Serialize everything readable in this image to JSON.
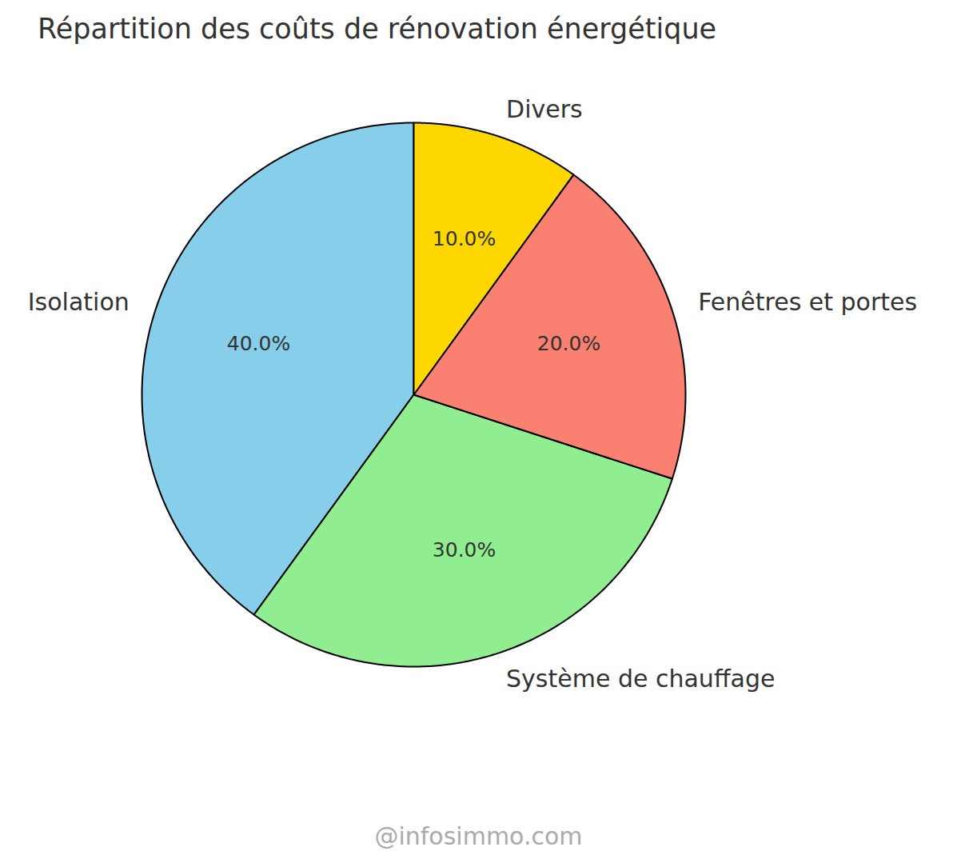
{
  "chart_data": {
    "type": "pie",
    "title": "Répartition des coûts de rénovation énergétique",
    "categories": [
      "Isolation",
      "Système de chauffage",
      "Fenêtres et portes",
      "Divers"
    ],
    "values": [
      40,
      30,
      20,
      10
    ],
    "value_labels": [
      "40.0%",
      "30.0%",
      "20.0%",
      "10.0%"
    ],
    "colors": [
      "#87CEEB",
      "#90EE90",
      "#FA8072",
      "#FFD700"
    ],
    "data_labels": true,
    "annotation": "@infosimmo.com"
  }
}
